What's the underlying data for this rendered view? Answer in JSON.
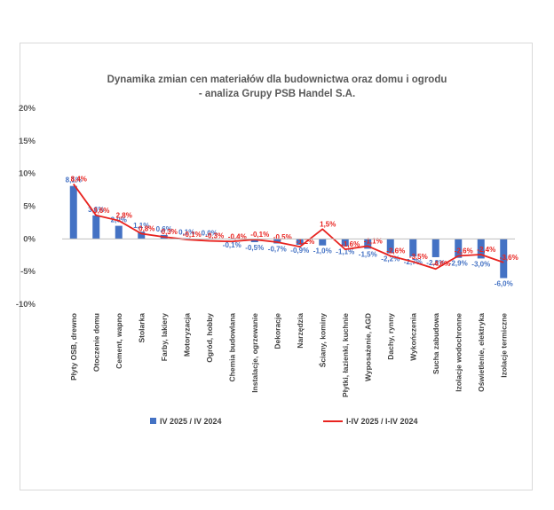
{
  "chart_data": {
    "type": "bar",
    "title": [
      "Dynamika zmian cen materiałów dla budownictwa oraz domu i ogrodu",
      "- analiza Grupy PSB Handel S.A."
    ],
    "categories": [
      "Płyty OSB, drewno",
      "Otoczenie domu",
      "Cement, wapno",
      "Stolarka",
      "Farby, lakiery",
      "Motoryzacja",
      "Ogród, hobby",
      "Chemia budowlana",
      "Instalacje, ogrzewanie",
      "Dekoracje",
      "Narzędzia",
      "Ściany, kominy",
      "Płytki, łazienki, kuchnie",
      "Wyposażenie, AGD",
      "Dachy, rynny",
      "Wykończenia",
      "Sucha zabudowa",
      "Izolacje wodochronne",
      "Oświetlenie, elektryka",
      "Izolacje termiczne"
    ],
    "series": [
      {
        "name": "IV 2025 / IV 2024",
        "kind": "bar",
        "color": "#4472c4",
        "values": [
          8.1,
          3.6,
          2.0,
          1.1,
          0.6,
          0.1,
          0.0,
          -0.1,
          -0.5,
          -0.7,
          -0.9,
          -1.0,
          -1.1,
          -1.5,
          -2.2,
          -2.7,
          -2.8,
          -2.9,
          -3.0,
          -6.0
        ],
        "labels": [
          "8,1%",
          "3,6%",
          "2,0%",
          "1,1%",
          "0,6%",
          "0,1%",
          "0,0%",
          "-0,1%",
          "-0,5%",
          "-0,7%",
          "-0,9%",
          "-1,0%",
          "-1,1%",
          "-1,5%",
          "-2,2%",
          "-2,7%",
          "-2,8%",
          "-2,9%",
          "-3,0%",
          "-6,0%"
        ]
      },
      {
        "name": "I-IV 2025 / I-IV 2024",
        "kind": "line",
        "color": "#e8231f",
        "values": [
          8.4,
          3.6,
          2.8,
          0.8,
          0.3,
          -0.1,
          -0.3,
          -0.4,
          -0.1,
          -0.5,
          -1.2,
          1.5,
          -1.6,
          -1.1,
          -2.6,
          -3.5,
          -4.6,
          -2.6,
          -2.4,
          -3.6
        ],
        "labels": [
          "8,4%",
          "3,6%",
          "2,8%",
          "0,8%",
          "0,3%",
          "-0,1%",
          "-0,3%",
          "-0,4%",
          "-0,1%",
          "-0,5%",
          "-1,2%",
          "1,5%",
          "-1,6%",
          "-1,1%",
          "-2,6%",
          "-3,5%",
          "-4,6%",
          "-2,6%",
          "-2,4%",
          "-3,6%"
        ]
      }
    ],
    "ylim": [
      -10,
      20
    ],
    "yticks": [
      20,
      15,
      10,
      5,
      0,
      -5,
      -10
    ],
    "ytick_labels": [
      "20%",
      "15%",
      "10%",
      "5%",
      "0%",
      "-5%",
      "-10%"
    ],
    "xlabel": "",
    "ylabel": "",
    "grid": false,
    "legend": "bottom"
  }
}
